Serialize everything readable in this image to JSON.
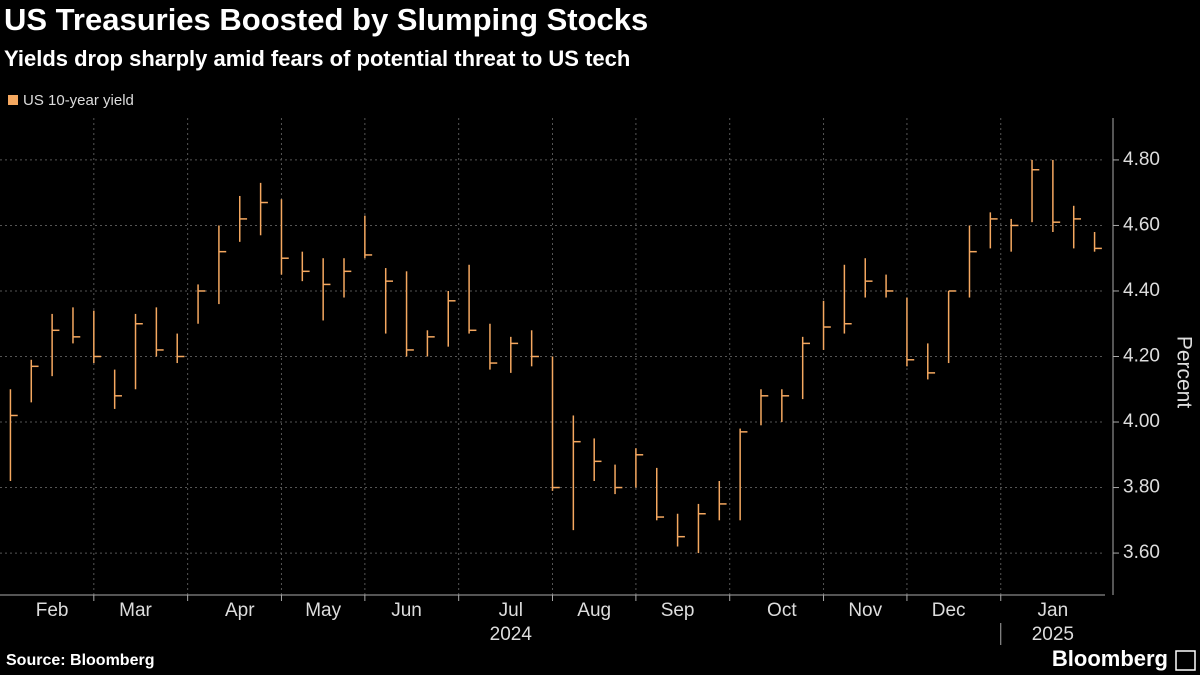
{
  "chart_data": {
    "type": "hlc",
    "title": "US Treasuries Boosted by Slumping Stocks",
    "subtitle": "Yields drop sharply amid fears of potential threat to US tech",
    "y_axis_label": "Percent",
    "source": "Source: Bloomberg",
    "brand": "Bloomberg",
    "year_labels": [
      "2024",
      "2025"
    ],
    "categories": [
      null,
      null,
      "Feb",
      null,
      null,
      null,
      "Mar",
      null,
      null,
      null,
      null,
      "Apr",
      null,
      null,
      null,
      "May",
      null,
      null,
      null,
      "Jun",
      null,
      null,
      null,
      null,
      "Jul",
      null,
      null,
      null,
      "Aug",
      null,
      null,
      null,
      "Sep",
      null,
      null,
      null,
      null,
      "Oct",
      null,
      null,
      null,
      "Nov",
      null,
      null,
      null,
      "Dec",
      null,
      null,
      null,
      null,
      "Jan",
      null,
      null
    ],
    "series": [
      {
        "name": "US 10-year yield",
        "color": "#f5a860",
        "high": [
          4.1,
          4.19,
          4.33,
          4.35,
          4.34,
          4.16,
          4.33,
          4.35,
          4.27,
          4.42,
          4.6,
          4.69,
          4.73,
          4.68,
          4.52,
          4.5,
          4.5,
          4.63,
          4.47,
          4.46,
          4.28,
          4.4,
          4.48,
          4.3,
          4.26,
          4.28,
          4.2,
          4.02,
          3.95,
          3.87,
          3.92,
          3.86,
          3.72,
          3.75,
          3.82,
          3.98,
          4.1,
          4.1,
          4.26,
          4.37,
          4.48,
          4.5,
          4.45,
          4.38,
          4.24,
          4.4,
          4.6,
          4.64,
          4.62,
          4.8,
          4.8,
          4.66,
          4.58
        ],
        "low": [
          3.82,
          4.06,
          4.14,
          4.24,
          4.18,
          4.04,
          4.1,
          4.2,
          4.18,
          4.3,
          4.36,
          4.55,
          4.57,
          4.45,
          4.43,
          4.31,
          4.38,
          4.5,
          4.27,
          4.2,
          4.2,
          4.23,
          4.27,
          4.16,
          4.15,
          4.17,
          3.79,
          3.67,
          3.82,
          3.78,
          3.8,
          3.7,
          3.62,
          3.6,
          3.7,
          3.7,
          3.99,
          4.0,
          4.07,
          4.22,
          4.27,
          4.38,
          4.38,
          4.17,
          4.13,
          4.18,
          4.38,
          4.53,
          4.52,
          4.61,
          4.58,
          4.53,
          4.52
        ],
        "close": [
          4.02,
          4.17,
          4.28,
          4.26,
          4.2,
          4.08,
          4.3,
          4.22,
          4.2,
          4.4,
          4.52,
          4.62,
          4.67,
          4.5,
          4.46,
          4.42,
          4.46,
          4.51,
          4.43,
          4.22,
          4.26,
          4.37,
          4.28,
          4.18,
          4.24,
          4.2,
          3.8,
          3.94,
          3.88,
          3.8,
          3.9,
          3.71,
          3.65,
          3.72,
          3.75,
          3.97,
          4.08,
          4.08,
          4.24,
          4.29,
          4.3,
          4.43,
          4.4,
          4.19,
          4.15,
          4.4,
          4.52,
          4.62,
          4.6,
          4.77,
          4.61,
          4.62,
          4.53
        ]
      }
    ],
    "ylim": [
      3.472,
      4.928
    ],
    "yticks": [
      {
        "value": 3.6,
        "label": "3.60"
      },
      {
        "value": 3.8,
        "label": "3.80"
      },
      {
        "value": 4.0,
        "label": "4.00"
      },
      {
        "value": 4.2,
        "label": "4.20"
      },
      {
        "value": 4.4,
        "label": "4.40"
      },
      {
        "value": 4.6,
        "label": "4.60"
      },
      {
        "value": 4.8,
        "label": "4.80"
      }
    ],
    "grid": true,
    "legend": "top-left"
  }
}
